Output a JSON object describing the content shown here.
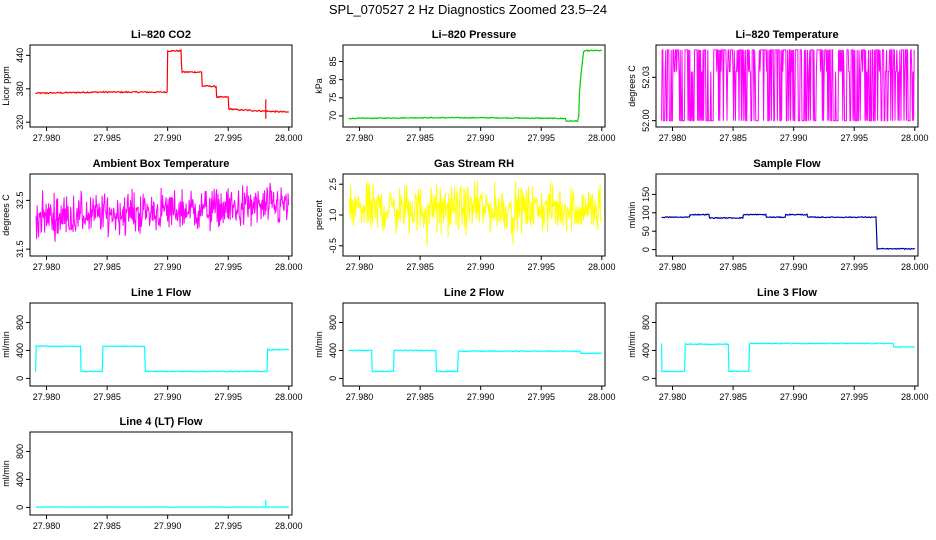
{
  "page": {
    "title": "SPL_070527  2 Hz Diagnostics Zoomed 23.5–24"
  },
  "chart_data": [
    {
      "type": "line",
      "title": "Li–820 CO2",
      "ylabel": "Licor ppm",
      "color": "#ff0000",
      "xlim": [
        27.9788,
        28.0001
      ],
      "ylim": [
        315,
        455
      ],
      "xticks": [
        27.98,
        27.985,
        27.99,
        27.995,
        28.0
      ],
      "xticklabels": [
        "27.980",
        "27.985",
        "27.990",
        "27.995",
        "28.000"
      ],
      "yticks": [
        320,
        380,
        440
      ],
      "yticklabels": [
        "320",
        "380",
        "440"
      ],
      "noise": 1.2,
      "x": [
        27.9791,
        27.984,
        27.9895,
        27.98995,
        27.99,
        27.9911,
        27.99115,
        27.9912,
        27.9928,
        27.99285,
        27.993,
        27.994,
        27.99405,
        27.995,
        27.99505,
        27.996,
        27.998,
        27.999,
        28.0
      ],
      "y": [
        372,
        374,
        374,
        374,
        448,
        448,
        420,
        410,
        410,
        385,
        385,
        384,
        365,
        365,
        344,
        342,
        340,
        339,
        338
      ],
      "spikes": [
        {
          "x": 27.9981,
          "y0": 326,
          "y1": 361
        }
      ]
    },
    {
      "type": "line",
      "title": "Li–820 Pressure",
      "ylabel": "kPa",
      "color": "#00cc00",
      "xlim": [
        27.9788,
        28.0001
      ],
      "ylim": [
        67.5,
        89
      ],
      "xticks": [
        27.98,
        27.985,
        27.99,
        27.995,
        28.0
      ],
      "xticklabels": [
        "27.980",
        "27.985",
        "27.990",
        "27.995",
        "28.000"
      ],
      "yticks": [
        70,
        75,
        80,
        85
      ],
      "yticklabels": [
        "70",
        "75",
        "80",
        "85"
      ],
      "noise": 0.12,
      "x": [
        27.9791,
        27.985,
        27.99,
        27.997,
        27.99705,
        27.998,
        27.9981,
        27.99815,
        27.9983,
        27.9985,
        27.9987,
        28.0
      ],
      "y": [
        69.3,
        69.5,
        69.5,
        69.3,
        68.6,
        68.6,
        70.0,
        76.0,
        82.0,
        87.7,
        88.0,
        88.0
      ]
    },
    {
      "type": "binary",
      "title": "Li–820 Temperature",
      "ylabel": "degrees C",
      "color": "#ff00ff",
      "xlim": [
        27.9788,
        28.0001
      ],
      "ylim": [
        51.997,
        52.051
      ],
      "xticks": [
        27.98,
        27.985,
        27.99,
        27.995,
        28.0
      ],
      "xticklabels": [
        "27.980",
        "27.985",
        "27.990",
        "27.995",
        "28.000"
      ],
      "yticks": [
        52.0,
        52.03
      ],
      "yticklabels": [
        "52.00",
        "52.03"
      ],
      "levels": [
        52.0,
        52.034,
        52.049
      ]
    },
    {
      "type": "noisy",
      "title": "Ambient Box Temperature",
      "ylabel": "degrees C",
      "color": "#ff00ff",
      "xlim": [
        27.9788,
        28.0001
      ],
      "ylim": [
        31.4,
        33.0
      ],
      "xticks": [
        27.98,
        27.985,
        27.99,
        27.995,
        28.0
      ],
      "xticklabels": [
        "27.980",
        "27.985",
        "27.990",
        "27.995",
        "28.000"
      ],
      "yticks": [
        31.5,
        32.5
      ],
      "yticklabels": [
        "31.5",
        "32.5"
      ],
      "base_start": 32.15,
      "base_end": 32.4,
      "spread": 0.42
    },
    {
      "type": "noisy",
      "title": "Gas Stream RH",
      "ylabel": "percent",
      "color": "#ffff00",
      "xlim": [
        27.9788,
        28.0001
      ],
      "ylim": [
        -0.9,
        2.9
      ],
      "xticks": [
        27.98,
        27.985,
        27.99,
        27.995,
        28.0
      ],
      "xticklabels": [
        "27.980",
        "27.985",
        "27.990",
        "27.995",
        "28.000"
      ],
      "yticks": [
        -0.5,
        1.0,
        2.5
      ],
      "yticklabels": [
        "-0.5",
        "1.0",
        "2.5"
      ],
      "base_start": 1.3,
      "base_end": 1.3,
      "spread": 1.1,
      "dips_to": -0.75
    },
    {
      "type": "line",
      "title": "Sample Flow",
      "ylabel": "ml/min",
      "color": "#0000aa",
      "xlim": [
        27.9788,
        28.0001
      ],
      "ylim": [
        -12,
        200
      ],
      "xticks": [
        27.98,
        27.985,
        27.99,
        27.995,
        28.0
      ],
      "xticklabels": [
        "27.980",
        "27.985",
        "27.990",
        "27.995",
        "28.000"
      ],
      "yticks": [
        0,
        50,
        100,
        150
      ],
      "yticklabels": [
        "0",
        "50",
        "100",
        "150"
      ],
      "noise": 1.2,
      "x": [
        27.9791,
        27.9814,
        27.98145,
        27.983,
        27.98305,
        27.9858,
        27.98585,
        27.9877,
        27.98775,
        27.9893,
        27.98935,
        27.9911,
        27.99115,
        27.9968,
        27.9969,
        28.0
      ],
      "y": [
        88,
        88,
        95,
        95,
        86,
        86,
        95,
        95,
        88,
        88,
        95,
        95,
        88,
        88,
        2,
        2
      ]
    },
    {
      "type": "line",
      "title": "Line 1 Flow",
      "ylabel": "ml/min",
      "color": "#00ffff",
      "xlim": [
        27.9788,
        28.0001
      ],
      "ylim": [
        -80,
        1050
      ],
      "xticks": [
        27.98,
        27.985,
        27.99,
        27.995,
        28.0
      ],
      "xticklabels": [
        "27.980",
        "27.985",
        "27.990",
        "27.995",
        "28.000"
      ],
      "yticks": [
        0,
        400,
        800
      ],
      "yticklabels": [
        "0",
        "400",
        "800"
      ],
      "noise": 6,
      "x": [
        27.9791,
        27.97915,
        27.9828,
        27.98285,
        27.9846,
        27.98465,
        27.9881,
        27.98815,
        27.9982,
        27.99825,
        28.0
      ],
      "y": [
        100,
        460,
        460,
        100,
        100,
        460,
        460,
        100,
        100,
        410,
        410
      ]
    },
    {
      "type": "line",
      "title": "Line 2 Flow",
      "ylabel": "ml/min",
      "color": "#00ffff",
      "xlim": [
        27.9788,
        28.0001
      ],
      "ylim": [
        -80,
        1050
      ],
      "xticks": [
        27.98,
        27.985,
        27.99,
        27.995,
        28.0
      ],
      "xticklabels": [
        "27.980",
        "27.985",
        "27.990",
        "27.995",
        "28.000"
      ],
      "yticks": [
        0,
        400,
        800
      ],
      "yticklabels": [
        "0",
        "400",
        "800"
      ],
      "noise": 6,
      "x": [
        27.9791,
        27.981,
        27.98105,
        27.9828,
        27.98285,
        27.9863,
        27.98635,
        27.9881,
        27.98815,
        27.9982,
        27.99825,
        28.0
      ],
      "y": [
        400,
        400,
        100,
        100,
        400,
        400,
        100,
        100,
        390,
        390,
        360,
        360
      ]
    },
    {
      "type": "line",
      "title": "Line 3 Flow",
      "ylabel": "ml/min",
      "color": "#00ffff",
      "xlim": [
        27.9788,
        28.0001
      ],
      "ylim": [
        -80,
        1050
      ],
      "xticks": [
        27.98,
        27.985,
        27.99,
        27.995,
        28.0
      ],
      "xticklabels": [
        "27.980",
        "27.985",
        "27.990",
        "27.995",
        "28.000"
      ],
      "yticks": [
        0,
        400,
        800
      ],
      "yticklabels": [
        "0",
        "400",
        "800"
      ],
      "noise": 6,
      "x": [
        27.9791,
        27.97912,
        27.97915,
        27.981,
        27.98105,
        27.9846,
        27.98465,
        27.9863,
        27.98635,
        27.9982,
        27.99825,
        28.0
      ],
      "y": [
        500,
        100,
        100,
        100,
        490,
        490,
        100,
        100,
        500,
        500,
        450,
        450
      ]
    },
    {
      "type": "line",
      "title": "Line 4 (LT) Flow",
      "ylabel": "ml/min",
      "color": "#00ffff",
      "xlim": [
        27.9788,
        28.0001
      ],
      "ylim": [
        -80,
        1050
      ],
      "xticks": [
        27.98,
        27.985,
        27.99,
        27.995,
        28.0
      ],
      "xticklabels": [
        "27.980",
        "27.985",
        "27.990",
        "27.995",
        "28.000"
      ],
      "yticks": [
        0,
        400,
        800
      ],
      "yticklabels": [
        "0",
        "400",
        "800"
      ],
      "noise": 2,
      "x": [
        27.9791,
        27.9981,
        28.0
      ],
      "y": [
        5,
        5,
        5
      ],
      "spikes": [
        {
          "x": 27.9981,
          "y0": 5,
          "y1": 110
        }
      ]
    }
  ]
}
